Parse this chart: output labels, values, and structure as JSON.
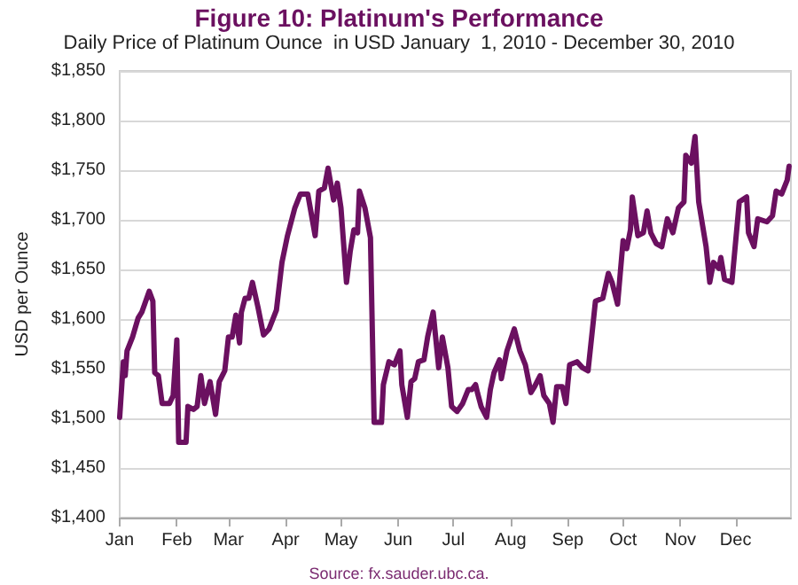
{
  "chart_data": {
    "type": "line",
    "title": "Figure 10: Platinum's Performance",
    "subtitle": "Daily Price of Platinum Ounce  in USD January  1, 2010 - December 30, 2010",
    "ylabel": "USD per Ounce",
    "annotations": [
      "Source: fx.sauder.ubc.ca."
    ],
    "x": [
      "2010-01-01",
      "2010-01-03",
      "2010-01-04",
      "2010-01-05",
      "2010-01-08",
      "2010-01-11",
      "2010-01-13",
      "2010-01-17",
      "2010-01-19",
      "2010-01-20",
      "2010-01-22",
      "2010-01-24",
      "2010-01-28",
      "2010-01-30",
      "2010-02-01",
      "2010-02-02",
      "2010-02-06",
      "2010-02-07",
      "2010-02-10",
      "2010-02-12",
      "2010-02-14",
      "2010-02-16",
      "2010-02-19",
      "2010-02-22",
      "2010-02-24",
      "2010-02-27",
      "2010-03-01",
      "2010-03-03",
      "2010-03-05",
      "2010-03-07",
      "2010-03-08",
      "2010-03-10",
      "2010-03-12",
      "2010-03-14",
      "2010-03-17",
      "2010-03-20",
      "2010-03-23",
      "2010-03-27",
      "2010-03-30",
      "2010-04-02",
      "2010-04-06",
      "2010-04-09",
      "2010-04-13",
      "2010-04-17",
      "2010-04-19",
      "2010-04-22",
      "2010-04-24",
      "2010-04-27",
      "2010-04-29",
      "2010-05-01",
      "2010-05-04",
      "2010-05-06",
      "2010-05-08",
      "2010-05-10",
      "2010-05-11",
      "2010-05-14",
      "2010-05-17",
      "2010-05-19",
      "2010-05-23",
      "2010-05-24",
      "2010-05-27",
      "2010-05-30",
      "2010-06-02",
      "2010-06-03",
      "2010-06-06",
      "2010-06-08",
      "2010-06-10",
      "2010-06-12",
      "2010-06-15",
      "2010-06-17",
      "2010-06-20",
      "2010-06-23",
      "2010-06-25",
      "2010-06-28",
      "2010-06-30",
      "2010-07-03",
      "2010-07-06",
      "2010-07-09",
      "2010-07-11",
      "2010-07-13",
      "2010-07-14",
      "2010-07-16",
      "2010-07-19",
      "2010-07-21",
      "2010-07-23",
      "2010-07-26",
      "2010-07-27",
      "2010-07-30",
      "2010-08-03",
      "2010-08-06",
      "2010-08-09",
      "2010-08-12",
      "2010-08-14",
      "2010-08-17",
      "2010-08-19",
      "2010-08-22",
      "2010-08-24",
      "2010-08-26",
      "2010-08-29",
      "2010-08-31",
      "2010-09-02",
      "2010-09-06",
      "2010-09-09",
      "2010-09-12",
      "2010-09-16",
      "2010-09-20",
      "2010-09-23",
      "2010-09-25",
      "2010-09-28",
      "2010-10-01",
      "2010-10-03",
      "2010-10-05",
      "2010-10-06",
      "2010-10-09",
      "2010-10-12",
      "2010-10-14",
      "2010-10-16",
      "2010-10-19",
      "2010-10-22",
      "2010-10-25",
      "2010-10-28",
      "2010-10-31",
      "2010-11-03",
      "2010-11-04",
      "2010-11-07",
      "2010-11-09",
      "2010-11-11",
      "2010-11-15",
      "2010-11-17",
      "2010-11-19",
      "2010-11-22",
      "2010-11-23",
      "2010-11-25",
      "2010-11-29",
      "2010-12-03",
      "2010-12-07",
      "2010-12-08",
      "2010-12-11",
      "2010-12-13",
      "2010-12-18",
      "2010-12-21",
      "2010-12-23",
      "2010-12-26",
      "2010-12-29",
      "2010-12-30"
    ],
    "series": [
      {
        "color": "#6b1060",
        "values": [
          1501,
          1557,
          1543,
          1568,
          1582,
          1601,
          1607,
          1628,
          1618,
          1546,
          1543,
          1515,
          1515,
          1523,
          1579,
          1476,
          1476,
          1512,
          1509,
          1512,
          1543,
          1515,
          1537,
          1504,
          1537,
          1548,
          1582,
          1582,
          1604,
          1576,
          1607,
          1621,
          1621,
          1637,
          1612,
          1584,
          1590,
          1609,
          1657,
          1684,
          1712,
          1726,
          1726,
          1684,
          1729,
          1732,
          1752,
          1720,
          1737,
          1712,
          1637,
          1668,
          1690,
          1687,
          1729,
          1712,
          1682,
          1496,
          1496,
          1534,
          1557,
          1554,
          1568,
          1534,
          1501,
          1537,
          1540,
          1557,
          1559,
          1582,
          1607,
          1551,
          1582,
          1551,
          1512,
          1507,
          1515,
          1529,
          1529,
          1534,
          1526,
          1512,
          1501,
          1529,
          1546,
          1559,
          1540,
          1568,
          1590,
          1568,
          1554,
          1526,
          1532,
          1543,
          1523,
          1515,
          1496,
          1532,
          1532,
          1515,
          1554,
          1557,
          1551,
          1548,
          1618,
          1621,
          1646,
          1637,
          1615,
          1679,
          1671,
          1690,
          1723,
          1684,
          1687,
          1709,
          1687,
          1676,
          1673,
          1701,
          1687,
          1712,
          1718,
          1765,
          1757,
          1784,
          1718,
          1673,
          1637,
          1657,
          1651,
          1662,
          1640,
          1637,
          1718,
          1723,
          1687,
          1673,
          1701,
          1698,
          1704,
          1729,
          1726,
          1740,
          1754
        ]
      }
    ],
    "xlim": [
      "2010-01-01",
      "2010-12-31"
    ],
    "xticks": [
      {
        "value": "2010-01-01",
        "label": "Jan"
      },
      {
        "value": "2010-02-01",
        "label": "Feb"
      },
      {
        "value": "2010-03-01",
        "label": "Mar"
      },
      {
        "value": "2010-04-01",
        "label": "Apr"
      },
      {
        "value": "2010-05-01",
        "label": "May"
      },
      {
        "value": "2010-06-01",
        "label": "Jun"
      },
      {
        "value": "2010-07-01",
        "label": "Jul"
      },
      {
        "value": "2010-08-01",
        "label": "Aug"
      },
      {
        "value": "2010-09-01",
        "label": "Sep"
      },
      {
        "value": "2010-10-01",
        "label": "Oct"
      },
      {
        "value": "2010-11-01",
        "label": "Nov"
      },
      {
        "value": "2010-12-01",
        "label": "Dec"
      }
    ],
    "ylim": [
      1400,
      1850
    ],
    "yticks": [
      {
        "value": 1400,
        "label": "$1,400"
      },
      {
        "value": 1450,
        "label": "$1,450"
      },
      {
        "value": 1500,
        "label": "$1,500"
      },
      {
        "value": 1550,
        "label": "$1,550"
      },
      {
        "value": 1600,
        "label": "$1,600"
      },
      {
        "value": 1650,
        "label": "$1,650"
      },
      {
        "value": 1700,
        "label": "$1,700"
      },
      {
        "value": 1750,
        "label": "$1,750"
      },
      {
        "value": 1800,
        "label": "$1,800"
      },
      {
        "value": 1850,
        "label": "$1,850"
      }
    ],
    "grid": "y",
    "marker": "none",
    "line_style": "solid"
  }
}
